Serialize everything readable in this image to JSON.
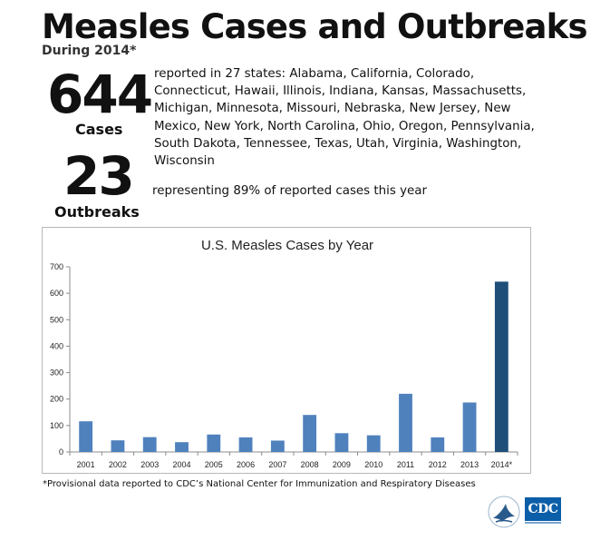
{
  "header": {
    "title": "Measles Cases and Outbreaks",
    "subtitle": "During 2014*"
  },
  "stats": {
    "cases_number": "644",
    "cases_label": "Cases",
    "cases_description": "reported in 27 states: Alabama, California, Colorado, Connecticut, Hawaii, Illinois, Indiana, Kansas, Massachusetts, Michigan, Minnesota, Missouri, Nebraska, New Jersey, New Mexico, New York, North Carolina, Ohio, Oregon, Pennsylvania, South Dakota, Tennessee, Texas, Utah, Virginia, Washington, Wisconsin",
    "outbreaks_number": "23",
    "outbreaks_label": "Outbreaks",
    "outbreaks_description": "representing 89% of reported cases this year"
  },
  "footnote": "*Provisional data reported to CDC’s National Center for Immunization and Respiratory Diseases",
  "logos": {
    "cdc_text": "CDC"
  },
  "colors": {
    "bar": "#4f81bd",
    "bar_highlight": "#1f4e79",
    "axis": "#8c8c8c"
  },
  "chart_data": {
    "type": "bar",
    "title": "U.S. Measles Cases by Year",
    "xlabel": "",
    "ylabel": "",
    "categories": [
      "2001",
      "2002",
      "2003",
      "2004",
      "2005",
      "2006",
      "2007",
      "2008",
      "2009",
      "2010",
      "2011",
      "2012",
      "2013",
      "2014*"
    ],
    "values": [
      116,
      44,
      56,
      37,
      66,
      55,
      43,
      140,
      71,
      63,
      220,
      55,
      187,
      644
    ],
    "highlight_index": 13,
    "ylim": [
      0,
      700
    ],
    "yticks": [
      0,
      100,
      200,
      300,
      400,
      500,
      600,
      700
    ],
    "grid": false,
    "legend": "none"
  }
}
